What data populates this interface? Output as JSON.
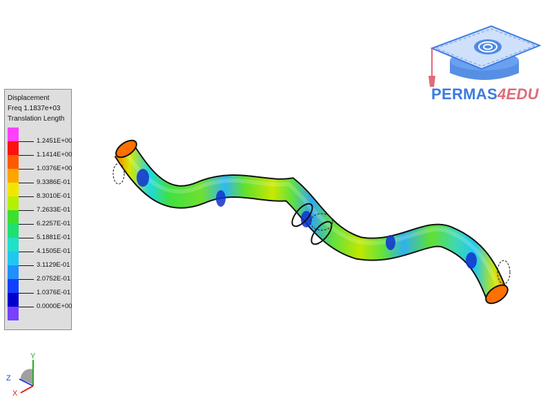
{
  "legend": {
    "title_line1": "Displacement",
    "title_line2": "Freq 1.1837e+03",
    "title_line3": "Translation Length",
    "labels": [
      "1.2451E+00",
      "1.1414E+00",
      "1.0376E+00",
      "9.3386E-01",
      "8.3010E-01",
      "7.2633E-01",
      "6.2257E-01",
      "5.1881E-01",
      "4.1505E-01",
      "3.1129E-01",
      "2.0752E-01",
      "1.0376E-01",
      "0.0000E+00"
    ],
    "colors": [
      "#ff40ff",
      "#ff1010",
      "#ff5a00",
      "#ffa500",
      "#f2e600",
      "#b4f000",
      "#3ce030",
      "#20e070",
      "#20e0c8",
      "#20c8f0",
      "#2090ff",
      "#1040ff",
      "#0000cc",
      "#7840ff"
    ]
  },
  "logo": {
    "name_part1": "PERMAS",
    "name_part2": "4EDU",
    "primary_color": "#3a7be0",
    "accent_color": "#e06a7a"
  },
  "axes": {
    "x_label": "X",
    "y_label": "Y",
    "z_label": "Z"
  }
}
